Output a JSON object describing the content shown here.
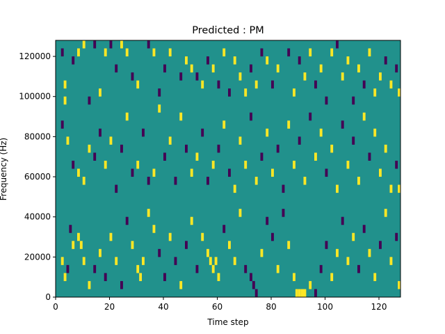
{
  "chart_data": {
    "type": "heatmap",
    "title": "Predicted : PM",
    "xlabel": "Time step",
    "ylabel": "Frequency (Hz)",
    "xlim": [
      0,
      128
    ],
    "ylim": [
      0,
      128000
    ],
    "x_ticks": [
      0,
      20,
      40,
      60,
      80,
      100,
      120
    ],
    "y_ticks": [
      0,
      20000,
      40000,
      60000,
      80000,
      100000,
      120000
    ],
    "y_tick_labels": [
      "0",
      "20000",
      "40000",
      "60000",
      "80000",
      "100000",
      "120000"
    ],
    "grid": false,
    "legend": "none",
    "value_levels": [
      -1,
      0,
      1
    ],
    "colors": {
      "-1": "#440154",
      "0": "#21918c",
      "1": "#fde725"
    },
    "background_value": 0,
    "cell_height_hz": 4000,
    "cells": [
      [
        2,
        120000,
        -1
      ],
      [
        3,
        104000,
        1
      ],
      [
        3,
        96000,
        1
      ],
      [
        6,
        116000,
        -1
      ],
      [
        8,
        120000,
        1
      ],
      [
        10,
        124000,
        1
      ],
      [
        12,
        96000,
        -1
      ],
      [
        14,
        124000,
        -1
      ],
      [
        16,
        100000,
        1
      ],
      [
        18,
        120000,
        1
      ],
      [
        20,
        124000,
        -1
      ],
      [
        22,
        112000,
        -1
      ],
      [
        24,
        124000,
        1
      ],
      [
        26,
        120000,
        1
      ],
      [
        28,
        108000,
        -1
      ],
      [
        30,
        104000,
        1
      ],
      [
        34,
        124000,
        -1
      ],
      [
        36,
        120000,
        1
      ],
      [
        38,
        100000,
        -1
      ],
      [
        40,
        112000,
        -1
      ],
      [
        42,
        120000,
        1
      ],
      [
        46,
        108000,
        -1
      ],
      [
        48,
        116000,
        1
      ],
      [
        50,
        112000,
        1
      ],
      [
        52,
        108000,
        -1
      ],
      [
        54,
        104000,
        1
      ],
      [
        56,
        116000,
        -1
      ],
      [
        58,
        112000,
        1
      ],
      [
        60,
        104000,
        -1
      ],
      [
        62,
        120000,
        1
      ],
      [
        64,
        100000,
        -1
      ],
      [
        66,
        116000,
        1
      ],
      [
        68,
        108000,
        1
      ],
      [
        70,
        100000,
        1
      ],
      [
        72,
        112000,
        -1
      ],
      [
        74,
        104000,
        1
      ],
      [
        76,
        120000,
        -1
      ],
      [
        78,
        116000,
        1
      ],
      [
        80,
        104000,
        -1
      ],
      [
        82,
        112000,
        1
      ],
      [
        86,
        120000,
        -1
      ],
      [
        88,
        100000,
        1
      ],
      [
        90,
        116000,
        -1
      ],
      [
        92,
        108000,
        1
      ],
      [
        94,
        120000,
        1
      ],
      [
        96,
        104000,
        -1
      ],
      [
        98,
        112000,
        1
      ],
      [
        100,
        96000,
        -1
      ],
      [
        102,
        120000,
        1
      ],
      [
        104,
        124000,
        -1
      ],
      [
        106,
        108000,
        1
      ],
      [
        108,
        116000,
        1
      ],
      [
        110,
        96000,
        -1
      ],
      [
        112,
        112000,
        1
      ],
      [
        114,
        104000,
        -1
      ],
      [
        116,
        120000,
        1
      ],
      [
        118,
        100000,
        1
      ],
      [
        120,
        108000,
        1
      ],
      [
        122,
        116000,
        -1
      ],
      [
        124,
        104000,
        1
      ],
      [
        126,
        112000,
        -1
      ],
      [
        127,
        100000,
        1
      ],
      [
        2,
        84000,
        -1
      ],
      [
        4,
        76000,
        1
      ],
      [
        6,
        64000,
        -1
      ],
      [
        8,
        60000,
        1
      ],
      [
        10,
        56000,
        1
      ],
      [
        12,
        72000,
        1
      ],
      [
        14,
        68000,
        -1
      ],
      [
        16,
        80000,
        -1
      ],
      [
        18,
        64000,
        1
      ],
      [
        20,
        76000,
        1
      ],
      [
        22,
        52000,
        -1
      ],
      [
        24,
        72000,
        -1
      ],
      [
        26,
        88000,
        1
      ],
      [
        28,
        60000,
        -1
      ],
      [
        30,
        64000,
        1
      ],
      [
        32,
        80000,
        -1
      ],
      [
        34,
        56000,
        -1
      ],
      [
        36,
        60000,
        1
      ],
      [
        38,
        92000,
        1
      ],
      [
        40,
        68000,
        -1
      ],
      [
        42,
        76000,
        1
      ],
      [
        44,
        56000,
        -1
      ],
      [
        46,
        88000,
        1
      ],
      [
        48,
        72000,
        -1
      ],
      [
        50,
        60000,
        1
      ],
      [
        52,
        68000,
        1
      ],
      [
        54,
        80000,
        -1
      ],
      [
        56,
        56000,
        -1
      ],
      [
        58,
        64000,
        1
      ],
      [
        60,
        72000,
        -1
      ],
      [
        62,
        84000,
        1
      ],
      [
        64,
        60000,
        -1
      ],
      [
        66,
        52000,
        1
      ],
      [
        68,
        76000,
        1
      ],
      [
        70,
        64000,
        1
      ],
      [
        72,
        88000,
        -1
      ],
      [
        74,
        56000,
        1
      ],
      [
        76,
        68000,
        -1
      ],
      [
        78,
        80000,
        1
      ],
      [
        80,
        60000,
        1
      ],
      [
        82,
        72000,
        -1
      ],
      [
        84,
        52000,
        -1
      ],
      [
        86,
        84000,
        1
      ],
      [
        88,
        64000,
        1
      ],
      [
        90,
        76000,
        -1
      ],
      [
        92,
        56000,
        1
      ],
      [
        94,
        88000,
        -1
      ],
      [
        96,
        68000,
        1
      ],
      [
        98,
        80000,
        1
      ],
      [
        100,
        60000,
        -1
      ],
      [
        102,
        72000,
        1
      ],
      [
        104,
        52000,
        1
      ],
      [
        106,
        84000,
        -1
      ],
      [
        108,
        64000,
        1
      ],
      [
        110,
        76000,
        -1
      ],
      [
        112,
        56000,
        1
      ],
      [
        114,
        88000,
        1
      ],
      [
        116,
        68000,
        -1
      ],
      [
        118,
        80000,
        1
      ],
      [
        120,
        60000,
        1
      ],
      [
        122,
        72000,
        1
      ],
      [
        124,
        52000,
        1
      ],
      [
        126,
        64000,
        -1
      ],
      [
        127,
        52000,
        1
      ],
      [
        2,
        16000,
        1
      ],
      [
        3,
        8000,
        1
      ],
      [
        4,
        12000,
        -1
      ],
      [
        5,
        32000,
        -1
      ],
      [
        6,
        24000,
        1
      ],
      [
        8,
        28000,
        1
      ],
      [
        9,
        24000,
        1
      ],
      [
        10,
        16000,
        1
      ],
      [
        12,
        4000,
        1
      ],
      [
        14,
        12000,
        -1
      ],
      [
        16,
        20000,
        1
      ],
      [
        18,
        8000,
        -1
      ],
      [
        20,
        28000,
        1
      ],
      [
        22,
        16000,
        1
      ],
      [
        24,
        4000,
        -1
      ],
      [
        26,
        36000,
        -1
      ],
      [
        28,
        24000,
        1
      ],
      [
        30,
        12000,
        1
      ],
      [
        31,
        8000,
        1
      ],
      [
        32,
        16000,
        1
      ],
      [
        34,
        40000,
        1
      ],
      [
        36,
        32000,
        1
      ],
      [
        38,
        20000,
        -1
      ],
      [
        40,
        8000,
        -1
      ],
      [
        42,
        28000,
        1
      ],
      [
        44,
        16000,
        -1
      ],
      [
        46,
        4000,
        1
      ],
      [
        48,
        24000,
        -1
      ],
      [
        50,
        36000,
        1
      ],
      [
        52,
        12000,
        -1
      ],
      [
        54,
        28000,
        1
      ],
      [
        56,
        20000,
        1
      ],
      [
        57,
        16000,
        1
      ],
      [
        58,
        12000,
        1
      ],
      [
        59,
        16000,
        1
      ],
      [
        60,
        8000,
        1
      ],
      [
        62,
        32000,
        -1
      ],
      [
        64,
        24000,
        1
      ],
      [
        66,
        16000,
        1
      ],
      [
        68,
        40000,
        1
      ],
      [
        70,
        12000,
        -1
      ],
      [
        72,
        8000,
        -1
      ],
      [
        73,
        4000,
        -1
      ],
      [
        74,
        0,
        -1
      ],
      [
        76,
        20000,
        1
      ],
      [
        78,
        36000,
        -1
      ],
      [
        80,
        28000,
        -1
      ],
      [
        82,
        12000,
        1
      ],
      [
        84,
        40000,
        -1
      ],
      [
        86,
        24000,
        1
      ],
      [
        88,
        8000,
        1
      ],
      [
        89,
        0,
        1
      ],
      [
        90,
        0,
        1
      ],
      [
        91,
        0,
        1
      ],
      [
        92,
        0,
        1
      ],
      [
        94,
        4000,
        1
      ],
      [
        96,
        0,
        -1
      ],
      [
        98,
        12000,
        -1
      ],
      [
        100,
        24000,
        -1
      ],
      [
        102,
        8000,
        1
      ],
      [
        104,
        20000,
        1
      ],
      [
        106,
        36000,
        -1
      ],
      [
        108,
        16000,
        1
      ],
      [
        110,
        28000,
        1
      ],
      [
        112,
        12000,
        -1
      ],
      [
        114,
        32000,
        -1
      ],
      [
        116,
        20000,
        1
      ],
      [
        118,
        8000,
        1
      ],
      [
        120,
        24000,
        -1
      ],
      [
        122,
        40000,
        1
      ],
      [
        124,
        16000,
        1
      ],
      [
        126,
        28000,
        -1
      ],
      [
        127,
        4000,
        1
      ]
    ]
  }
}
